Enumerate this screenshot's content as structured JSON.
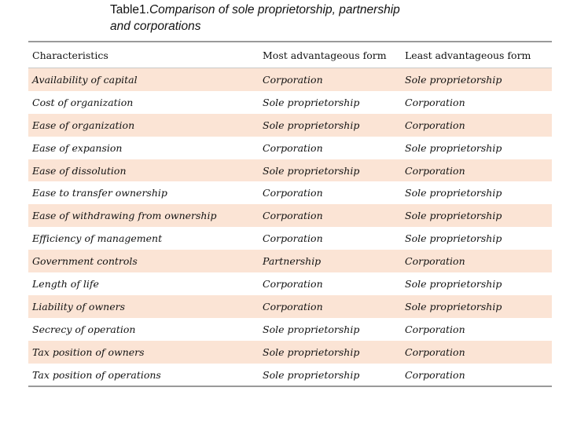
{
  "title": {
    "label": "Table1.",
    "text_line1": "Comparison of sole proprietorship, partnership",
    "text_line2": "and corporations"
  },
  "table": {
    "headers": [
      "Characteristics",
      "Most advantageous form",
      "Least  advantageous form"
    ],
    "rows": [
      [
        "Availability of capital",
        "Corporation",
        "Sole proprietorship"
      ],
      [
        "Cost of organization",
        "Sole proprietorship",
        "Corporation"
      ],
      [
        "Ease of organization",
        "Sole proprietorship",
        "Corporation"
      ],
      [
        "Ease of expansion",
        "Corporation",
        "Sole proprietorship"
      ],
      [
        "Ease of dissolution",
        "Sole proprietorship",
        "Corporation"
      ],
      [
        "Ease to transfer ownership",
        "Corporation",
        "Sole proprietorship"
      ],
      [
        "Ease of withdrawing from ownership",
        "Corporation",
        "Sole proprietorship"
      ],
      [
        "Efficiency of management",
        "Corporation",
        "Sole proprietorship"
      ],
      [
        "Government controls",
        "Partnership",
        "Corporation"
      ],
      [
        "Length of life",
        "Corporation",
        "Sole proprietorship"
      ],
      [
        "Liability of owners",
        "Corporation",
        "Sole proprietorship"
      ],
      [
        "Secrecy of operation",
        "Sole proprietorship",
        "Corporation"
      ],
      [
        "Tax position of owners",
        "Sole proprietorship",
        "Corporation"
      ],
      [
        "Tax position of operations",
        "Sole proprietorship",
        "Corporation"
      ]
    ],
    "shaded_row_color": "#fbe4d5"
  }
}
